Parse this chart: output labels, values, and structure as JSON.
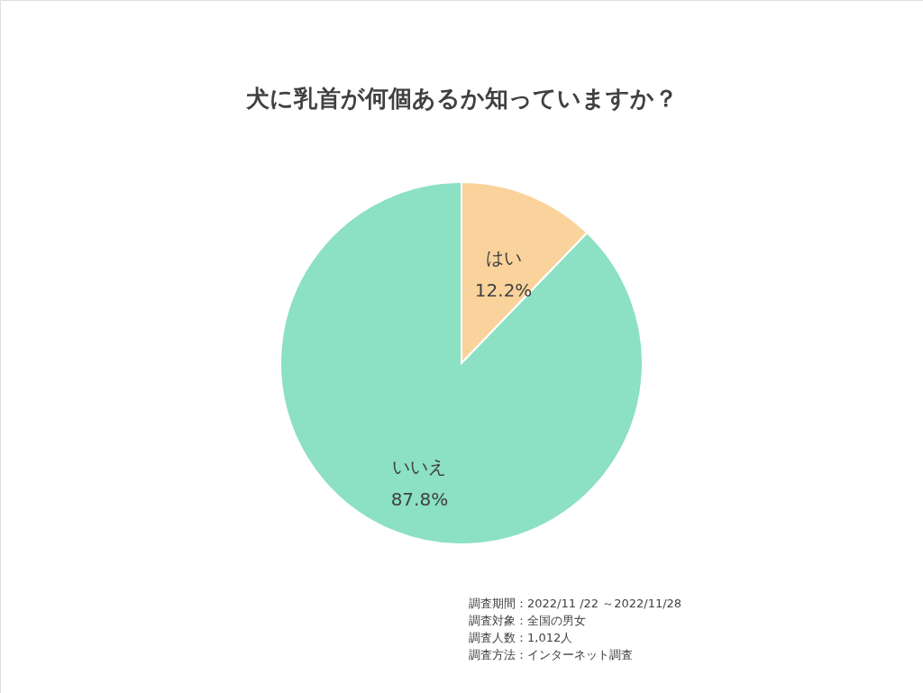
{
  "chart_data": {
    "type": "pie",
    "title": "犬に乳首が何個あるか知っていますか？",
    "categories": [
      "はい",
      "いいえ"
    ],
    "values": [
      12.2,
      87.8
    ],
    "colors": [
      "#f9d39b",
      "#8ce0c4"
    ],
    "value_labels": [
      "12.2%",
      "87.8%"
    ],
    "annotations": [
      "調査期間：2022/11 /22 ～2022/11/28",
      "調査対象：全国の男女",
      "調査人数：1,012人",
      "調査方法：インターネット調査"
    ]
  }
}
